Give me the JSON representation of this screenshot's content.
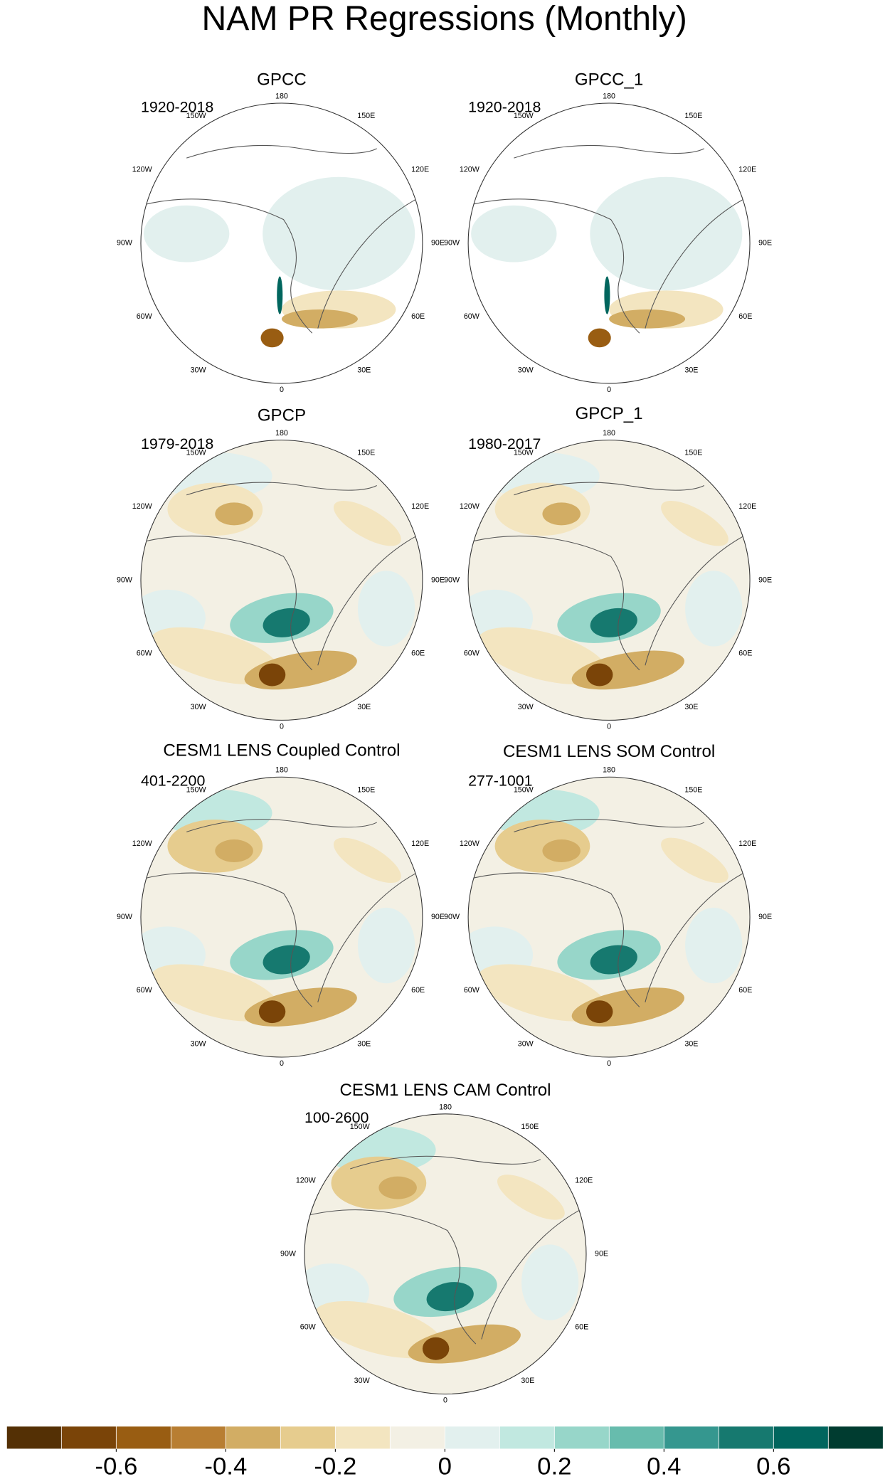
{
  "title": "NAM PR Regressions (Monthly)",
  "panels": [
    {
      "title": "GPCC",
      "period": "1920-2018"
    },
    {
      "title": "GPCC_1",
      "period": "1920-2018"
    },
    {
      "title": "GPCP",
      "period": "1979-2018"
    },
    {
      "title": "GPCP_1",
      "period": "1980-2017"
    },
    {
      "title": "CESM1 LENS Coupled Control",
      "period": "401-2200"
    },
    {
      "title": "CESM1 LENS SOM Control",
      "period": "277-1001"
    },
    {
      "title": "CESM1 LENS CAM Control",
      "period": "100-2600"
    }
  ],
  "lon_labels": [
    "180",
    "150E",
    "120E",
    "90E",
    "60E",
    "30E",
    "0",
    "30W",
    "60W",
    "90W",
    "120W",
    "150W"
  ],
  "colorbar": {
    "colors": [
      "#543005",
      "#7a4408",
      "#995d12",
      "#b87e32",
      "#d2ad64",
      "#e6cc8e",
      "#f3e5c0",
      "#f3f0e4",
      "#e2f0ee",
      "#c1e8e0",
      "#97d6c9",
      "#67bcad",
      "#35978f",
      "#16796f",
      "#01665e",
      "#003c30"
    ],
    "lim": [
      -0.8,
      0.8
    ],
    "ticks": [
      -0.6,
      -0.4,
      -0.2,
      0,
      0.2,
      0.4,
      0.6
    ]
  }
}
